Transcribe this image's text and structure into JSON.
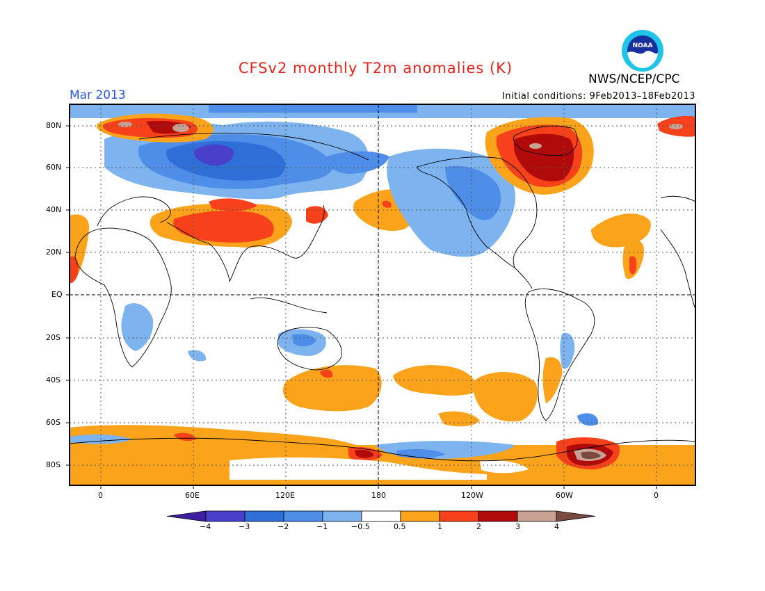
{
  "header": {
    "title": "CFSv2 monthly T2m anomalies (K)",
    "month": "Mar 2013",
    "initial_conditions": "Initial conditions: 9Feb2013–18Feb2013",
    "agency": "NWS/NCEP/CPC",
    "logo_text": "NOAA"
  },
  "axes": {
    "lat_labels": [
      "80N",
      "60N",
      "40N",
      "20N",
      "EQ",
      "20S",
      "40S",
      "60S",
      "80S"
    ],
    "lon_labels": [
      "0",
      "60E",
      "120E",
      "180",
      "120W",
      "60W",
      "0"
    ]
  },
  "colorbar": {
    "labels": [
      "−4",
      "−3",
      "−2",
      "−1",
      "−0.5",
      "0.5",
      "1",
      "2",
      "3",
      "4"
    ],
    "colors": [
      "#3c1ea0",
      "#4a3fc8",
      "#2f6fd8",
      "#4f8ee8",
      "#7db4f0",
      "#ffffff",
      "#fba31a",
      "#f6411a",
      "#b00a0a",
      "#c9a193",
      "#7a4a40"
    ]
  }
}
